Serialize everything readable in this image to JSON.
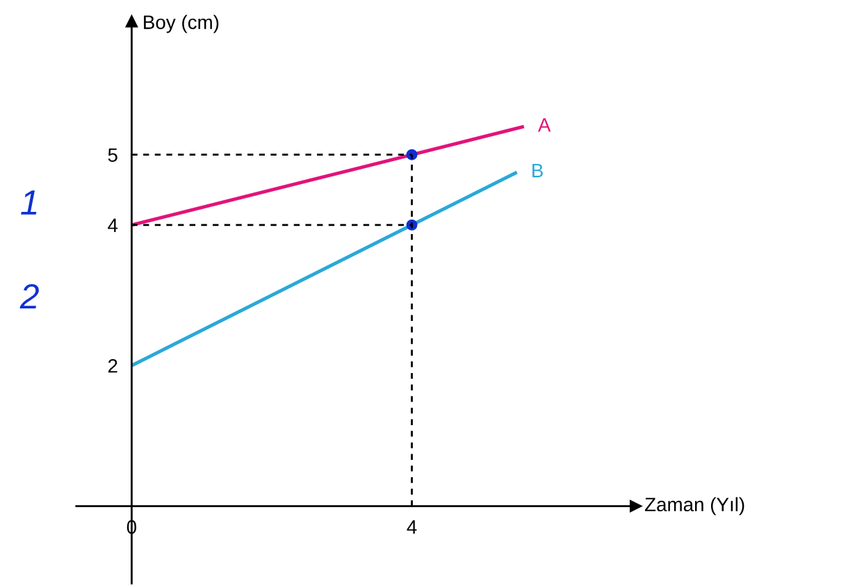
{
  "chart_data": {
    "type": "line",
    "xlabel": "Zaman (Yıl)",
    "ylabel": "Boy (cm)",
    "xlim": [
      -0.79,
      7.2
    ],
    "ylim": [
      -1.1,
      6.9
    ],
    "xticks": [
      0,
      4
    ],
    "yticks": [
      2,
      4,
      5
    ],
    "grid": false,
    "legend": false,
    "marker": "none",
    "line_style": "solid",
    "series": [
      {
        "name": "A",
        "color": "#e0147a",
        "x": [
          0,
          5.6
        ],
        "values": [
          4,
          5.4
        ]
      },
      {
        "name": "B",
        "color": "#2aa8d8",
        "x": [
          0,
          5.5
        ],
        "values": [
          2,
          4.75
        ]
      },
      {
        "color": "#000000",
        "line_style": "dashed",
        "x": [
          0,
          4
        ],
        "values": [
          5,
          5
        ]
      },
      {
        "color": "#000000",
        "line_style": "dashed",
        "x": [
          0,
          4
        ],
        "values": [
          4,
          4
        ]
      },
      {
        "color": "#000000",
        "line_style": "dashed",
        "x": [
          4,
          4
        ],
        "values": [
          0,
          5
        ]
      },
      {
        "type": "scatter",
        "color": "#1030d0",
        "marker": "circle",
        "x": [
          4,
          4
        ],
        "values": [
          5,
          4
        ]
      }
    ],
    "annotations": [
      "1",
      "2"
    ]
  }
}
